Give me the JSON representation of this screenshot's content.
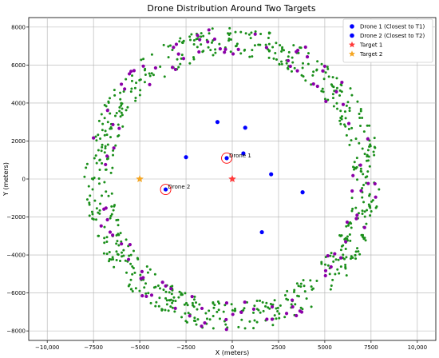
{
  "chart_data": {
    "type": "scatter",
    "title": "Drone Distribution Around Two Targets",
    "xlabel": "X (meters)",
    "ylabel": "Y (meters)",
    "xlim": [
      -11000,
      11000
    ],
    "ylim": [
      -8500,
      8500
    ],
    "x_ticks": [
      -10000,
      -7500,
      -5000,
      -2500,
      0,
      2500,
      5000,
      7500,
      10000
    ],
    "x_tick_labels": [
      "−10,000",
      "−7500",
      "−5000",
      "−2500",
      "0",
      "2500",
      "5000",
      "7500",
      "10,000"
    ],
    "y_ticks": [
      -8000,
      -6000,
      -4000,
      -2000,
      0,
      2000,
      4000,
      6000,
      8000
    ],
    "y_tick_labels": [
      "−8000",
      "−6000",
      "−4000",
      "−2000",
      "0",
      "2000",
      "4000",
      "6000",
      "8000"
    ],
    "grid": true,
    "legend_position": "top-right",
    "legend": [
      {
        "label": "Drone 1 (Closest to T1)",
        "marker": "circle",
        "color": "#0000ff"
      },
      {
        "label": "Drone 2 (Closest to T2)",
        "marker": "circle",
        "color": "#0000ff"
      },
      {
        "label": "Target 1",
        "marker": "star",
        "color": "#ff3b3b"
      },
      {
        "label": "Target 2",
        "marker": "star",
        "color": "#f5a623"
      }
    ],
    "ring": {
      "description_free": true,
      "center": [
        0,
        0
      ],
      "inner_radius": 6500,
      "outer_radius": 8000,
      "green_count": 700,
      "purple_count": 110,
      "green_color": "#1a8f1a",
      "purple_color": "#8b00a8"
    },
    "blue_drones": {
      "color": "#0000ff",
      "points": [
        [
          -800,
          3000
        ],
        [
          700,
          2700
        ],
        [
          -2500,
          1150
        ],
        [
          600,
          1350
        ],
        [
          -300,
          1100
        ],
        [
          2100,
          250
        ],
        [
          3800,
          -700
        ],
        [
          -3600,
          -550
        ],
        [
          1600,
          -2800
        ]
      ]
    },
    "target_1": {
      "x": 0,
      "y": 0,
      "color": "#ff3b3b"
    },
    "target_2": {
      "x": -5000,
      "y": 0,
      "color": "#f5a623"
    },
    "annotations": [
      {
        "text": "Drone 1",
        "x": -300,
        "y": 1100,
        "circle_color": "#ff0000"
      },
      {
        "text": "Drone 2",
        "x": -3600,
        "y": -550,
        "circle_color": "#ff0000"
      }
    ]
  }
}
